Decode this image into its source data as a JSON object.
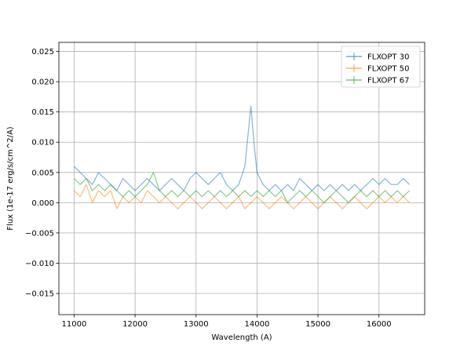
{
  "chart_data": {
    "type": "line",
    "title": "",
    "xlabel": "Wavelength (A)",
    "ylabel": "Flux (1e-17 erg/s/cm^2/A)",
    "xlim": [
      10750,
      16750
    ],
    "ylim": [
      -0.0185,
      0.0265
    ],
    "xticks": [
      11000,
      12000,
      13000,
      14000,
      15000,
      16000
    ],
    "yticks": [
      -0.015,
      -0.01,
      -0.005,
      0.0,
      0.005,
      0.01,
      0.015,
      0.02,
      0.025
    ],
    "xtick_labels": [
      "11000",
      "12000",
      "13000",
      "14000",
      "15000",
      "16000"
    ],
    "ytick_labels": [
      "−0.015",
      "−0.010",
      "−0.005",
      "0.000",
      "0.005",
      "0.010",
      "0.015",
      "0.020",
      "0.025"
    ],
    "grid": true,
    "legend_position": "top-right",
    "series": [
      {
        "name": "FLXOPT 30",
        "color": "#1f77b4",
        "x": [
          11000,
          11100,
          11200,
          11300,
          11400,
          11500,
          11600,
          11700,
          11800,
          11900,
          12000,
          12100,
          12200,
          12300,
          12400,
          12500,
          12600,
          12700,
          12800,
          12900,
          13000,
          13100,
          13200,
          13300,
          13400,
          13500,
          13600,
          13700,
          13800,
          13850,
          13900,
          13950,
          14000,
          14100,
          14200,
          14300,
          14400,
          14500,
          14600,
          14700,
          14800,
          14900,
          15000,
          15100,
          15200,
          15300,
          15400,
          15500,
          15600,
          15700,
          15800,
          15900,
          16000,
          16100,
          16200,
          16300,
          16400,
          16500
        ],
        "y": [
          0.006,
          0.005,
          0.004,
          0.003,
          0.005,
          0.004,
          0.003,
          0.002,
          0.004,
          0.003,
          0.002,
          0.003,
          0.004,
          0.003,
          0.002,
          0.003,
          0.004,
          0.003,
          0.002,
          0.004,
          0.005,
          0.004,
          0.003,
          0.004,
          0.005,
          0.003,
          0.002,
          0.003,
          0.006,
          0.011,
          0.016,
          0.01,
          0.005,
          0.003,
          0.002,
          0.003,
          0.002,
          0.003,
          0.002,
          0.004,
          0.003,
          0.002,
          0.003,
          0.002,
          0.003,
          0.002,
          0.003,
          0.002,
          0.003,
          0.002,
          0.003,
          0.004,
          0.003,
          0.004,
          0.003,
          0.003,
          0.004,
          0.003
        ]
      },
      {
        "name": "FLXOPT 50",
        "color": "#ff7f0e",
        "x": [
          11000,
          11100,
          11200,
          11300,
          11400,
          11500,
          11600,
          11700,
          11800,
          11900,
          12000,
          12100,
          12200,
          12300,
          12400,
          12500,
          12600,
          12700,
          12800,
          12900,
          13000,
          13100,
          13200,
          13300,
          13400,
          13500,
          13600,
          13700,
          13800,
          13900,
          14000,
          14100,
          14200,
          14300,
          14400,
          14500,
          14600,
          14700,
          14800,
          14900,
          15000,
          15100,
          15200,
          15300,
          15400,
          15500,
          15600,
          15700,
          15800,
          15900,
          16000,
          16100,
          16200,
          16300,
          16400,
          16500
        ],
        "y": [
          0.002,
          0.001,
          0.003,
          0.0,
          0.002,
          0.001,
          0.002,
          -0.001,
          0.001,
          0.0,
          0.001,
          0.0,
          0.002,
          0.001,
          0.0,
          0.001,
          0.0,
          -0.001,
          0.0,
          0.001,
          0.0,
          -0.001,
          0.0,
          0.001,
          0.0,
          -0.001,
          0.0,
          0.001,
          -0.001,
          0.0,
          0.001,
          0.0,
          -0.001,
          0.0,
          0.001,
          0.0,
          -0.001,
          0.0,
          0.001,
          0.0,
          -0.001,
          0.0,
          0.001,
          0.0,
          -0.001,
          0.0,
          0.001,
          0.0,
          -0.001,
          0.0,
          0.001,
          0.0,
          0.001,
          0.0,
          0.001,
          0.0
        ]
      },
      {
        "name": "FLXOPT 67",
        "color": "#2ca02c",
        "x": [
          11000,
          11100,
          11200,
          11300,
          11400,
          11500,
          11600,
          11700,
          11800,
          11900,
          12000,
          12100,
          12200,
          12300,
          12400,
          12500,
          12600,
          12700,
          12800,
          12900,
          13000,
          13100,
          13200,
          13300,
          13400,
          13500,
          13600,
          13700,
          13800,
          13900,
          14000,
          14100,
          14200,
          14300,
          14400,
          14500,
          14600,
          14700,
          14800,
          14900,
          15000,
          15100,
          15200,
          15300,
          15400,
          15500,
          15600,
          15700,
          15800,
          15900,
          16000,
          16100,
          16200,
          16300,
          16400,
          16500
        ],
        "y": [
          0.004,
          0.003,
          0.004,
          0.002,
          0.003,
          0.002,
          0.003,
          0.002,
          0.001,
          0.002,
          0.001,
          0.002,
          0.003,
          0.005,
          0.002,
          0.001,
          0.002,
          0.001,
          0.002,
          0.001,
          0.002,
          0.001,
          0.002,
          0.001,
          0.002,
          0.001,
          0.002,
          0.001,
          0.002,
          0.001,
          0.002,
          0.001,
          0.002,
          0.001,
          0.002,
          0.0,
          0.001,
          0.002,
          0.001,
          0.002,
          0.001,
          0.0,
          0.001,
          0.002,
          0.001,
          0.0,
          0.001,
          0.002,
          0.001,
          0.002,
          0.001,
          0.002,
          0.001,
          0.002,
          0.001,
          0.002
        ]
      }
    ]
  }
}
